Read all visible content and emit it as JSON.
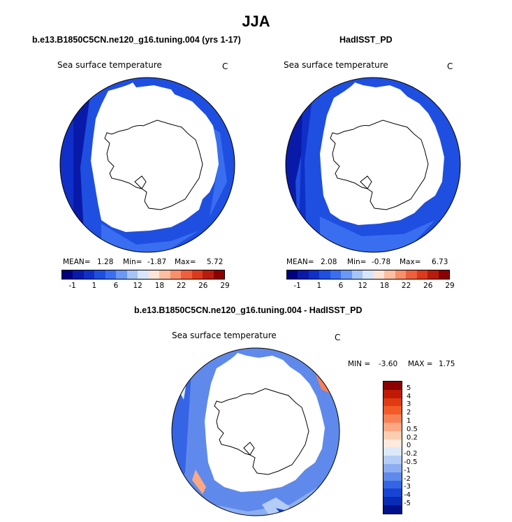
{
  "title": "JJA",
  "panels": [
    {
      "title": "b.e13.B1850C5CN.ne120_g16.tuning.004 (yrs 1-17)",
      "variable": "Sea surface temperature",
      "units": "C",
      "mean_label": "MEAN=",
      "mean": "1.28",
      "min_label": "Min=",
      "min": "-1.87",
      "max_label": "Max=",
      "max": "5.72"
    },
    {
      "title": "HadISST_PD",
      "variable": "Sea surface temperature",
      "units": "C",
      "mean_label": "MEAN=",
      "mean": "2.08",
      "min_label": "Min=",
      "min": "-0.78",
      "max_label": "Max=",
      "max": "6.73"
    }
  ],
  "diff_panel": {
    "title": "b.e13.B1850C5CN.ne120_g16.tuning.004 - HadISST_PD",
    "variable": "Sea surface temperature",
    "units": "C",
    "min_label": "MIN =",
    "min": "-3.60",
    "max_label": "MAX =",
    "max": "1.75"
  },
  "colorbar_top": {
    "colors": [
      "#000080",
      "#0a1aa8",
      "#0f2fc8",
      "#1f4fe0",
      "#3a6ef0",
      "#6a98f4",
      "#a6c4f8",
      "#d8e6fb",
      "#fde4d6",
      "#fcbfa2",
      "#f98f6a",
      "#ef5f3c",
      "#db3a1c",
      "#b81c0c",
      "#8c0000"
    ],
    "labels": [
      "-1",
      "1",
      "6",
      "12",
      "18",
      "22",
      "26",
      "29"
    ]
  },
  "colorbar_diff": {
    "colors": [
      "#8b0000",
      "#c01a06",
      "#e03a12",
      "#f25a28",
      "#f98055",
      "#fba883",
      "#fdcdb2",
      "#feeadd",
      "#dce9fb",
      "#b4cdf6",
      "#8caef1",
      "#5f8aec",
      "#3565e4",
      "#1844d4",
      "#0a2bb5",
      "#00128a"
    ],
    "labels": [
      "5",
      "4",
      "3",
      "2",
      "1",
      "0.5",
      "0.2",
      "0",
      "-0.2",
      "-0.5",
      "-1",
      "-2",
      "-3",
      "-4",
      "-5"
    ]
  },
  "chart_data": [
    {
      "type": "heatmap",
      "projection": "south-polar-stereographic",
      "title": "b.e13.B1850C5CN.ne120_g16.tuning.004 (yrs 1-17)",
      "variable": "Sea surface temperature",
      "units": "C",
      "stats": {
        "mean": 1.28,
        "min": -1.87,
        "max": 5.72
      },
      "levels": [
        -1,
        1,
        6,
        12,
        18,
        22,
        26,
        29
      ]
    },
    {
      "type": "heatmap",
      "projection": "south-polar-stereographic",
      "title": "HadISST_PD",
      "variable": "Sea surface temperature",
      "units": "C",
      "stats": {
        "mean": 2.08,
        "min": -0.78,
        "max": 6.73
      },
      "levels": [
        -1,
        1,
        6,
        12,
        18,
        22,
        26,
        29
      ]
    },
    {
      "type": "heatmap",
      "projection": "south-polar-stereographic",
      "title": "b.e13.B1850C5CN.ne120_g16.tuning.004 - HadISST_PD",
      "variable": "Sea surface temperature",
      "units": "C",
      "stats": {
        "min": -3.6,
        "max": 1.75
      },
      "levels": [
        -5,
        -4,
        -3,
        -2,
        -1,
        -0.5,
        -0.2,
        0,
        0.2,
        0.5,
        1,
        2,
        3,
        4,
        5
      ]
    }
  ]
}
